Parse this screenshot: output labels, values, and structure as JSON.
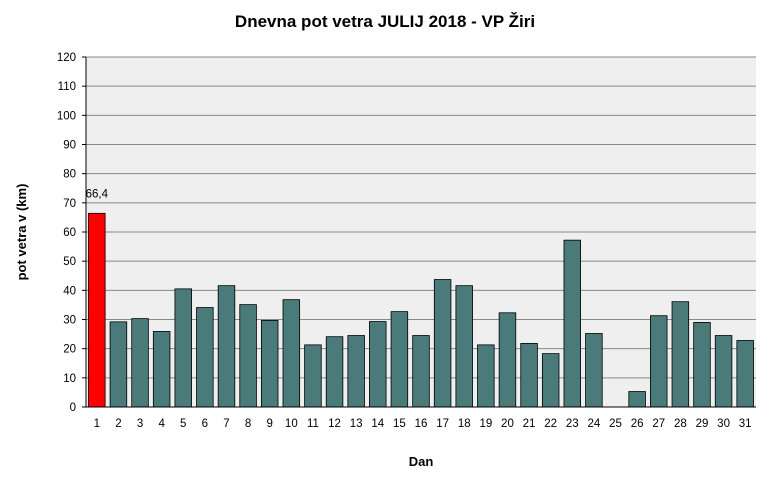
{
  "chart_data": {
    "type": "bar",
    "title": "Dnevna pot vetra JULIJ 2018 - VP Žiri",
    "xlabel": "Dan",
    "ylabel": "pot vetra v (km)",
    "ylim": [
      0,
      120
    ],
    "ytick_step": 10,
    "yticks": [
      "0",
      "10",
      "20",
      "30",
      "40",
      "50",
      "60",
      "70",
      "80",
      "90",
      "100",
      "110",
      "120"
    ],
    "grid": true,
    "categories": [
      "1",
      "2",
      "3",
      "4",
      "5",
      "6",
      "7",
      "8",
      "9",
      "10",
      "11",
      "12",
      "13",
      "14",
      "15",
      "16",
      "17",
      "18",
      "19",
      "20",
      "21",
      "22",
      "23",
      "24",
      "25",
      "26",
      "27",
      "28",
      "29",
      "30",
      "31"
    ],
    "values": [
      66.4,
      29.2,
      30.3,
      25.9,
      40.5,
      34.1,
      41.6,
      35.1,
      29.7,
      36.8,
      21.3,
      24.1,
      24.5,
      29.3,
      32.7,
      24.5,
      43.7,
      41.6,
      21.3,
      32.3,
      21.8,
      18.3,
      57.2,
      25.2,
      null,
      5.3,
      31.3,
      36.1,
      29.0,
      24.5,
      22.8
    ],
    "data_labels": [
      {
        "index": 0,
        "text": "66,4"
      }
    ],
    "colors": {
      "bar": "#4a7b7a",
      "highlight": "#ff0000",
      "plot_bg": "#efefef",
      "grid": "#8a8a8a"
    }
  }
}
